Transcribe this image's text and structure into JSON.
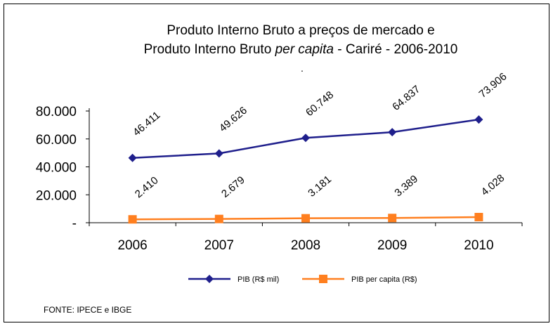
{
  "chart_data": {
    "type": "line",
    "title": [
      "Produto Interno Bruto a preços de mercado  e",
      [
        "Produto Interno Bruto ",
        "per capita",
        " - Cariré - 2006-2010"
      ]
    ],
    "annotation": ".",
    "categories": [
      "2006",
      "2007",
      "2008",
      "2009",
      "2010"
    ],
    "series": [
      {
        "name": "PIB (R$ mil)",
        "color": "#1f1f8c",
        "marker": "diamond",
        "values": [
          46411,
          49626,
          60748,
          64837,
          73906
        ],
        "value_labels": [
          "46.411",
          "49.626",
          "60.748",
          "64.837",
          "73.906"
        ]
      },
      {
        "name": "PIB per capita (R$)",
        "color": "#ff7f1f",
        "marker": "square",
        "values": [
          2410,
          2679,
          3181,
          3389,
          4028
        ],
        "value_labels": [
          "2.410",
          "2.679",
          "3.181",
          "3.389",
          "4.028"
        ]
      }
    ],
    "ylim": [
      0,
      80000
    ],
    "yticks": [
      {
        "value": 0,
        "label": "-"
      },
      {
        "value": 20000,
        "label": "20.000"
      },
      {
        "value": 40000,
        "label": "40.000"
      },
      {
        "value": 60000,
        "label": "60.000"
      },
      {
        "value": 80000,
        "label": "80.000"
      }
    ],
    "legend": "bottom",
    "source": "FONTE: IPECE e IBGE"
  }
}
